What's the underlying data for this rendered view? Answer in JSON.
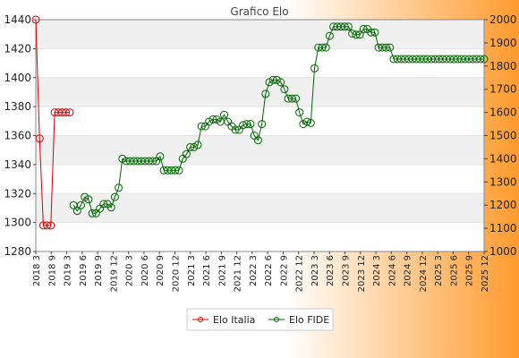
{
  "chart_data": {
    "type": "line",
    "title": "Grafico Elo",
    "legend": {
      "placement": "bottom-center"
    },
    "grid": true,
    "colors": {
      "background_gradient": [
        "#ffffff",
        "#ff9b2e"
      ],
      "plot_band": "#f0f0f0",
      "plot_bg": "#ffffff",
      "italia": "#dd0000",
      "fide": "#006600"
    },
    "left_axis": {
      "ylim": [
        1280,
        1440
      ],
      "ticks": [
        1280,
        1300,
        1320,
        1340,
        1360,
        1380,
        1400,
        1420,
        1440
      ]
    },
    "right_axis": {
      "ylim": [
        1000,
        2000
      ],
      "ticks": [
        1000,
        1100,
        1200,
        1300,
        1400,
        1500,
        1600,
        1700,
        1800,
        1900,
        2000
      ]
    },
    "categories": [
      "2018 3",
      "2018 9",
      "2019 3",
      "2019 6",
      "2019 9",
      "2019 12",
      "2020 3",
      "2020 6",
      "2020 9",
      "2020 12",
      "2021 3",
      "2021 6",
      "2021 9",
      "2021 12",
      "2022 3",
      "2022 6",
      "2022 9",
      "2022 12",
      "2023 3",
      "2023 6",
      "2023 9",
      "2023 12",
      "2024 3",
      "2024 6",
      "2024 9",
      "2024 12",
      "2025 3",
      "2025 6",
      "2025 9",
      "2025 12"
    ],
    "series": [
      {
        "name": "Elo Italia",
        "axis": "left",
        "x": [
          0,
          1,
          2,
          3,
          4,
          5,
          6,
          7,
          8,
          9
        ],
        "values": [
          1440,
          1358,
          1298,
          1298,
          1298,
          1376,
          1376,
          1376,
          1376,
          1376
        ]
      },
      {
        "name": "Elo FIDE",
        "axis": "right",
        "x": [
          10,
          11,
          12,
          13,
          14,
          15,
          16,
          17,
          18,
          19,
          20,
          21,
          22,
          23,
          24,
          25,
          26,
          27,
          28,
          29,
          30,
          31,
          32,
          33,
          34,
          35,
          36,
          37,
          38,
          39,
          40,
          41,
          42,
          43,
          44,
          45,
          46,
          47,
          48,
          49,
          50,
          51,
          52,
          53,
          54,
          55,
          56,
          57,
          58,
          59,
          60,
          61,
          62,
          63,
          64,
          65,
          66,
          67,
          68,
          69,
          70,
          71,
          72,
          73,
          74,
          75,
          76,
          77,
          78,
          79,
          80,
          81,
          82,
          83,
          84,
          85,
          86,
          87,
          88,
          89,
          90,
          91,
          92,
          93,
          94,
          95,
          96,
          97,
          98,
          99,
          100,
          101,
          102,
          103,
          104,
          105,
          106,
          107,
          108,
          109,
          110,
          111,
          112,
          113,
          114,
          115,
          116,
          117,
          118,
          119
        ],
        "values": [
          1200,
          1175,
          1200,
          1235,
          1225,
          1165,
          1165,
          1185,
          1205,
          1205,
          1190,
          1235,
          1275,
          1400,
          1390,
          1390,
          1390,
          1390,
          1390,
          1390,
          1390,
          1390,
          1390,
          1410,
          1350,
          1350,
          1350,
          1350,
          1350,
          1400,
          1420,
          1450,
          1450,
          1460,
          1540,
          1540,
          1560,
          1570,
          1570,
          1560,
          1590,
          1560,
          1540,
          1525,
          1525,
          1545,
          1550,
          1550,
          1500,
          1480,
          1550,
          1680,
          1730,
          1740,
          1740,
          1730,
          1700,
          1660,
          1660,
          1660,
          1600,
          1550,
          1560,
          1555,
          1790,
          1880,
          1880,
          1880,
          1930,
          1970,
          1970,
          1970,
          1970,
          1970,
          1940,
          1935,
          1935,
          1960,
          1960,
          1945,
          1945,
          1880,
          1880,
          1880,
          1880,
          1830,
          1830,
          1830,
          1830,
          1830,
          1830,
          1830,
          1830,
          1830,
          1830,
          1830,
          1830,
          1830,
          1830,
          1830,
          1830,
          1830,
          1830,
          1830,
          1830,
          1830,
          1830,
          1830,
          1830,
          1830
        ]
      }
    ]
  }
}
